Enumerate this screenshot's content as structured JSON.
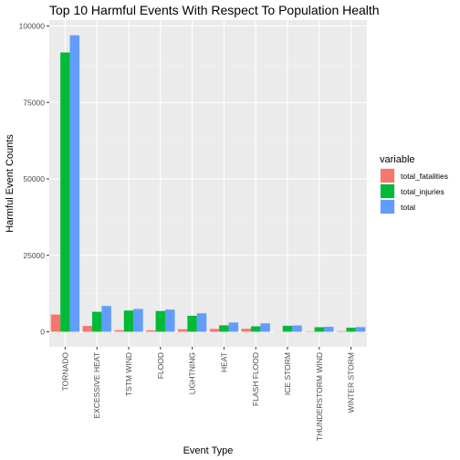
{
  "chart_data": {
    "type": "bar",
    "title": "Top 10 Harmful Events With Respect To Population Health",
    "xlabel": "Event Type",
    "ylabel": "Harmful Event Counts",
    "ylim": [
      -5000,
      100000
    ],
    "yticks": [
      0,
      25000,
      50000,
      75000,
      100000
    ],
    "ytick_labels": [
      "0",
      "25000",
      "50000",
      "75000",
      "100000"
    ],
    "categories": [
      "TORNADO",
      "EXCESSIVE HEAT",
      "TSTM WIND",
      "FLOOD",
      "LIGHTNING",
      "HEAT",
      "FLASH FLOOD",
      "ICE STORM",
      "THUNDERSTORM WIND",
      "WINTER STORM"
    ],
    "legend_title": "variable",
    "legend_position": "right",
    "grid": true,
    "series": [
      {
        "name": "total_fatalities",
        "color": "#F8766D",
        "values": [
          5633,
          1903,
          504,
          470,
          816,
          937,
          978,
          89,
          133,
          206
        ]
      },
      {
        "name": "total_injuries",
        "color": "#00BA38",
        "values": [
          91346,
          6525,
          6957,
          6789,
          5230,
          2100,
          1777,
          1975,
          1488,
          1321
        ]
      },
      {
        "name": "total",
        "color": "#619CFF",
        "values": [
          96979,
          8428,
          7461,
          7259,
          6046,
          3037,
          2755,
          2064,
          1621,
          1527
        ]
      }
    ]
  }
}
